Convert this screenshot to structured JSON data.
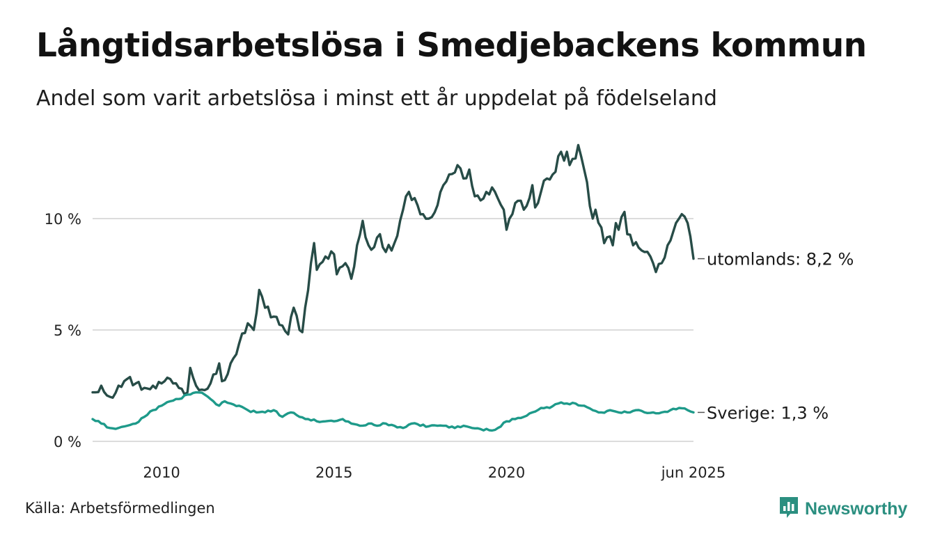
{
  "title": "Långtidsarbetslösa i Smedjebackens kommun",
  "subtitle": "Andel som varit arbetslösa i minst ett år uppdelat på födelseland",
  "source": "Källa: Arbetsförmedlingen",
  "brand": {
    "name": "Newsworthy",
    "icon": "newsworthy-logo-icon",
    "color": "#2b8f80"
  },
  "chart_data": {
    "type": "line",
    "x_start": "2008-01",
    "x_end": "2025-06",
    "x_ticks": [
      {
        "x": 2010.0,
        "label": "2010"
      },
      {
        "x": 2015.0,
        "label": "2015"
      },
      {
        "x": 2020.0,
        "label": "2020"
      },
      {
        "x": 2025.42,
        "label": "jun 2025"
      }
    ],
    "y_ticks": [
      {
        "value": 0,
        "label": "0 %"
      },
      {
        "value": 5,
        "label": "5 %"
      },
      {
        "value": 10,
        "label": "10 %"
      }
    ],
    "ylim": [
      0,
      13.5
    ],
    "grid": true,
    "series": [
      {
        "name": "utomlands",
        "end_label": "utomlands: 8,2 %",
        "color": "#274c47",
        "keypoints": [
          [
            2008.0,
            2.2
          ],
          [
            2008.25,
            2.5
          ],
          [
            2008.5,
            2.0
          ],
          [
            2008.75,
            2.5
          ],
          [
            2009.0,
            2.8
          ],
          [
            2009.25,
            2.6
          ],
          [
            2009.5,
            2.4
          ],
          [
            2009.75,
            2.5
          ],
          [
            2010.0,
            2.6
          ],
          [
            2010.25,
            2.8
          ],
          [
            2010.5,
            2.4
          ],
          [
            2010.75,
            2.2
          ],
          [
            2010.83,
            3.3
          ],
          [
            2011.0,
            2.5
          ],
          [
            2011.25,
            2.3
          ],
          [
            2011.5,
            3.0
          ],
          [
            2011.67,
            3.5
          ],
          [
            2011.75,
            2.7
          ],
          [
            2012.0,
            3.5
          ],
          [
            2012.25,
            4.4
          ],
          [
            2012.5,
            5.3
          ],
          [
            2012.67,
            5.0
          ],
          [
            2012.83,
            6.8
          ],
          [
            2013.0,
            6.0
          ],
          [
            2013.25,
            5.6
          ],
          [
            2013.5,
            5.2
          ],
          [
            2013.67,
            4.8
          ],
          [
            2013.83,
            6.0
          ],
          [
            2014.0,
            5.0
          ],
          [
            2014.08,
            4.9
          ],
          [
            2014.33,
            8.0
          ],
          [
            2014.42,
            8.9
          ],
          [
            2014.5,
            7.7
          ],
          [
            2014.75,
            8.3
          ],
          [
            2015.0,
            8.4
          ],
          [
            2015.08,
            7.5
          ],
          [
            2015.33,
            8.0
          ],
          [
            2015.5,
            7.3
          ],
          [
            2015.83,
            9.9
          ],
          [
            2016.0,
            8.8
          ],
          [
            2016.08,
            8.6
          ],
          [
            2016.33,
            9.3
          ],
          [
            2016.5,
            8.5
          ],
          [
            2016.75,
            8.9
          ],
          [
            2017.0,
            10.4
          ],
          [
            2017.17,
            11.2
          ],
          [
            2017.42,
            10.6
          ],
          [
            2017.58,
            10.2
          ],
          [
            2017.75,
            10.0
          ],
          [
            2018.0,
            10.6
          ],
          [
            2018.17,
            11.5
          ],
          [
            2018.42,
            12.0
          ],
          [
            2018.58,
            12.4
          ],
          [
            2018.75,
            11.8
          ],
          [
            2018.92,
            12.2
          ],
          [
            2019.08,
            11.0
          ],
          [
            2019.33,
            10.9
          ],
          [
            2019.58,
            11.4
          ],
          [
            2019.75,
            10.9
          ],
          [
            2019.92,
            10.4
          ],
          [
            2020.0,
            9.5
          ],
          [
            2020.17,
            10.2
          ],
          [
            2020.33,
            10.8
          ],
          [
            2020.5,
            10.4
          ],
          [
            2020.75,
            11.5
          ],
          [
            2020.83,
            10.5
          ],
          [
            2021.0,
            11.2
          ],
          [
            2021.17,
            11.8
          ],
          [
            2021.42,
            12.1
          ],
          [
            2021.5,
            12.8
          ],
          [
            2021.58,
            13.0
          ],
          [
            2021.67,
            12.6
          ],
          [
            2021.75,
            13.0
          ],
          [
            2021.83,
            12.4
          ],
          [
            2022.0,
            12.7
          ],
          [
            2022.08,
            13.3
          ],
          [
            2022.25,
            12.2
          ],
          [
            2022.5,
            10.0
          ],
          [
            2022.58,
            10.4
          ],
          [
            2022.75,
            9.6
          ],
          [
            2022.83,
            8.9
          ],
          [
            2023.0,
            9.2
          ],
          [
            2023.08,
            8.8
          ],
          [
            2023.17,
            9.8
          ],
          [
            2023.25,
            9.5
          ],
          [
            2023.42,
            10.3
          ],
          [
            2023.5,
            9.3
          ],
          [
            2023.67,
            8.8
          ],
          [
            2023.83,
            8.7
          ],
          [
            2024.0,
            8.5
          ],
          [
            2024.17,
            8.3
          ],
          [
            2024.25,
            8.0
          ],
          [
            2024.33,
            7.6
          ],
          [
            2024.5,
            8.0
          ],
          [
            2024.67,
            8.8
          ],
          [
            2024.83,
            9.4
          ],
          [
            2025.0,
            10.0
          ],
          [
            2025.08,
            10.2
          ],
          [
            2025.25,
            9.8
          ],
          [
            2025.33,
            9.2
          ],
          [
            2025.42,
            8.2
          ]
        ]
      },
      {
        "name": "Sverige",
        "end_label": "Sverige: 1,3 %",
        "color": "#1e9a8a",
        "keypoints": [
          [
            2008.0,
            1.0
          ],
          [
            2008.25,
            0.8
          ],
          [
            2008.5,
            0.6
          ],
          [
            2008.75,
            0.6
          ],
          [
            2009.0,
            0.7
          ],
          [
            2009.25,
            0.8
          ],
          [
            2009.5,
            1.1
          ],
          [
            2009.75,
            1.4
          ],
          [
            2010.0,
            1.6
          ],
          [
            2010.25,
            1.8
          ],
          [
            2010.5,
            1.9
          ],
          [
            2010.75,
            2.1
          ],
          [
            2011.0,
            2.2
          ],
          [
            2011.25,
            2.1
          ],
          [
            2011.5,
            1.8
          ],
          [
            2011.67,
            1.6
          ],
          [
            2011.83,
            1.8
          ],
          [
            2012.0,
            1.7
          ],
          [
            2012.25,
            1.6
          ],
          [
            2012.5,
            1.4
          ],
          [
            2012.75,
            1.3
          ],
          [
            2013.0,
            1.3
          ],
          [
            2013.25,
            1.4
          ],
          [
            2013.5,
            1.1
          ],
          [
            2013.75,
            1.3
          ],
          [
            2014.0,
            1.1
          ],
          [
            2014.25,
            1.0
          ],
          [
            2014.5,
            0.9
          ],
          [
            2014.75,
            0.9
          ],
          [
            2015.0,
            0.9
          ],
          [
            2015.25,
            1.0
          ],
          [
            2015.5,
            0.8
          ],
          [
            2015.75,
            0.7
          ],
          [
            2016.0,
            0.8
          ],
          [
            2016.25,
            0.7
          ],
          [
            2016.5,
            0.8
          ],
          [
            2016.75,
            0.7
          ],
          [
            2017.0,
            0.6
          ],
          [
            2017.25,
            0.8
          ],
          [
            2017.5,
            0.7
          ],
          [
            2018.0,
            0.7
          ],
          [
            2018.25,
            0.7
          ],
          [
            2018.5,
            0.6
          ],
          [
            2018.75,
            0.7
          ],
          [
            2019.0,
            0.6
          ],
          [
            2019.25,
            0.55
          ],
          [
            2019.5,
            0.5
          ],
          [
            2019.75,
            0.6
          ],
          [
            2020.0,
            0.9
          ],
          [
            2020.25,
            1.0
          ],
          [
            2020.5,
            1.1
          ],
          [
            2020.75,
            1.3
          ],
          [
            2021.0,
            1.5
          ],
          [
            2021.25,
            1.5
          ],
          [
            2021.5,
            1.7
          ],
          [
            2021.75,
            1.7
          ],
          [
            2022.0,
            1.7
          ],
          [
            2022.25,
            1.6
          ],
          [
            2022.5,
            1.4
          ],
          [
            2022.75,
            1.3
          ],
          [
            2023.0,
            1.4
          ],
          [
            2023.25,
            1.3
          ],
          [
            2023.5,
            1.3
          ],
          [
            2023.75,
            1.4
          ],
          [
            2024.0,
            1.3
          ],
          [
            2024.25,
            1.3
          ],
          [
            2024.5,
            1.3
          ],
          [
            2024.75,
            1.4
          ],
          [
            2025.0,
            1.5
          ],
          [
            2025.25,
            1.4
          ],
          [
            2025.42,
            1.3
          ]
        ]
      }
    ]
  }
}
